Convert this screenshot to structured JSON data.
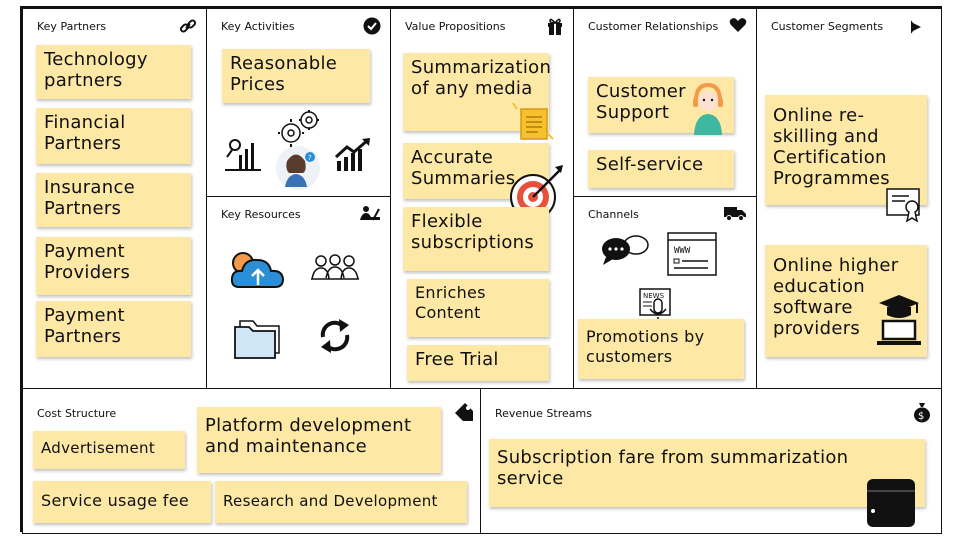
{
  "blocks": {
    "key_partners": {
      "title": "Key Partners",
      "icon": "link-icon",
      "notes": [
        "Technology partners",
        "Financial Partners",
        "Insurance Partners",
        "Payment Providers",
        "Payment Partners"
      ]
    },
    "key_activities": {
      "title": "Key Activities",
      "icon": "check-circle-icon",
      "notes": [
        "Reasonable Prices"
      ]
    },
    "key_resources": {
      "title": "Key Resources",
      "icon": "worker-icon"
    },
    "value_propositions": {
      "title": "Value Propositions",
      "icon": "gift-icon",
      "notes": [
        "Summarization of any media",
        "Accurate Summaries",
        "Flexible subscriptions",
        "Enriches Content",
        "Free Trial"
      ]
    },
    "customer_relationships": {
      "title": "Customer Relationships",
      "icon": "heart-icon",
      "notes": [
        "Customer Support",
        "Self-service"
      ]
    },
    "channels": {
      "title": "Channels",
      "icon": "truck-icon",
      "notes": [
        "Promotions by customers"
      ]
    },
    "customer_segments": {
      "title": "Customer Segments",
      "icon": "pacman-icon",
      "notes": [
        "Online re-skilling and Certification Programmes",
        "Online higher education software providers"
      ]
    },
    "cost_structure": {
      "title": "Cost Structure",
      "icon": "tag-icon",
      "notes": [
        "Advertisement",
        "Platform development and maintenance",
        "Service usage fee",
        "Research and Development"
      ]
    },
    "revenue_streams": {
      "title": "Revenue Streams",
      "icon": "money-bag-icon",
      "notes": [
        "Subscription fare from summarization service"
      ]
    }
  },
  "colors": {
    "sticky_note": "#fde8a6",
    "border": "#111111",
    "accent_blue": "#2c8fd6",
    "accent_orange": "#f29a4a"
  }
}
